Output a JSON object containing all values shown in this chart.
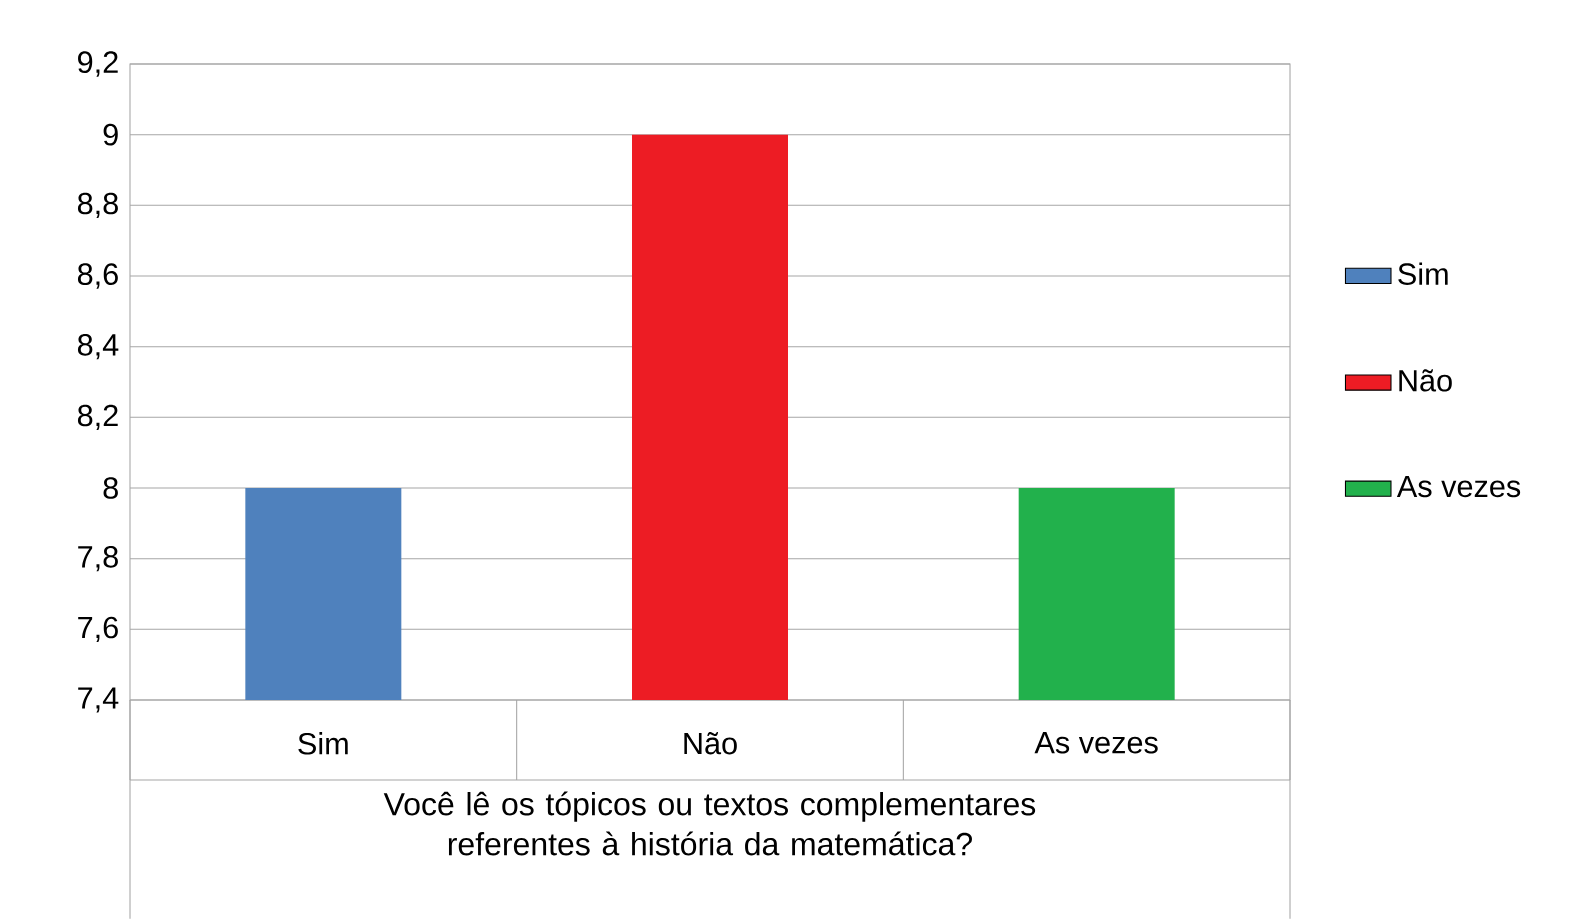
{
  "chart_data": {
    "type": "bar",
    "xlabel": "Você lê os tópicos ou textos complementares referentes à história da matemática?",
    "categories": [
      "Sim",
      "Não",
      "As vezes"
    ],
    "series": [
      {
        "name": "Sim",
        "color": "#4f81bd",
        "values": [
          8,
          null,
          null
        ]
      },
      {
        "name": "Não",
        "color": "#ed1c24",
        "values": [
          null,
          9,
          null
        ]
      },
      {
        "name": "As vezes",
        "color": "#22b14c",
        "values": [
          null,
          null,
          8
        ]
      }
    ],
    "ylim": [
      7.4,
      9.2
    ],
    "yticks": [
      {
        "value": 7.4,
        "label": "7,4"
      },
      {
        "value": 7.6,
        "label": "7,6"
      },
      {
        "value": 7.8,
        "label": "7,8"
      },
      8,
      {
        "value": 8.2,
        "label": "8,2"
      },
      {
        "value": 8.4,
        "label": "8,4"
      },
      {
        "value": 8.6,
        "label": "8,6"
      },
      {
        "value": 8.8,
        "label": "8,8"
      },
      9,
      {
        "value": 9.2,
        "label": "9,2"
      }
    ],
    "grid": "y",
    "legend": "right"
  }
}
